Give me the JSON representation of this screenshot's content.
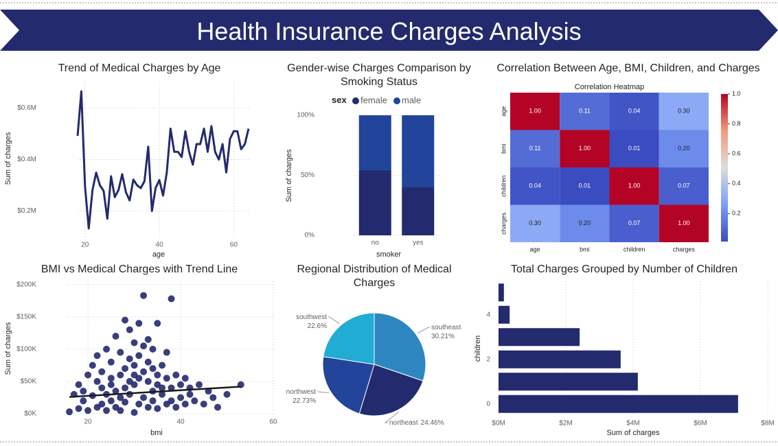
{
  "header": {
    "title": "Health Insurance Charges Analysis"
  },
  "chart_data": [
    {
      "type": "line",
      "title": "Trend of Medical Charges by Age",
      "xlabel": "age",
      "ylabel": "Sum of charges",
      "color": "#232a6e",
      "x": [
        18,
        19,
        20,
        21,
        22,
        23,
        24,
        25,
        26,
        27,
        28,
        29,
        30,
        31,
        32,
        33,
        34,
        35,
        36,
        37,
        38,
        39,
        40,
        41,
        42,
        43,
        44,
        45,
        46,
        47,
        48,
        49,
        50,
        51,
        52,
        53,
        54,
        55,
        56,
        57,
        58,
        59,
        60,
        61,
        62,
        63,
        64
      ],
      "values": [
        492000,
        665000,
        295000,
        132000,
        281000,
        349000,
        300000,
        278000,
        170000,
        335000,
        254000,
        281000,
        343000,
        273000,
        241000,
        322000,
        300000,
        289000,
        316000,
        450000,
        200000,
        290000,
        320000,
        260000,
        350000,
        520000,
        430000,
        430000,
        410000,
        510000,
        430000,
        380000,
        460000,
        460000,
        520000,
        430000,
        530000,
        430000,
        400000,
        460000,
        350000,
        480000,
        510000,
        510000,
        440000,
        460000,
        520000
      ],
      "xlim": [
        18,
        64
      ],
      "xticks": [
        20,
        40,
        60
      ],
      "ylim": [
        100000,
        700000
      ],
      "yticks": [
        {
          "value": 200000,
          "label": "$0.2M"
        },
        {
          "value": 400000,
          "label": "$0.4M"
        },
        {
          "value": 600000,
          "label": "$0.6M"
        }
      ],
      "grid": true
    },
    {
      "type": "bar",
      "title": "Gender-wise Charges Comparison by Smoking Status",
      "xlabel": "smoker",
      "ylabel": "Sum of charges",
      "legend_title": "sex",
      "stacked": true,
      "categories": [
        "no",
        "yes"
      ],
      "series": [
        {
          "name": "female",
          "color": "#232a6e",
          "values": [
            54,
            40
          ]
        },
        {
          "name": "male",
          "color": "#22449a",
          "values": [
            46,
            60
          ]
        }
      ],
      "ylim": [
        0,
        100
      ],
      "yticks": [
        {
          "value": 0,
          "label": "0%"
        },
        {
          "value": 50,
          "label": "50%"
        },
        {
          "value": 100,
          "label": "100%"
        }
      ],
      "grid": true
    },
    {
      "type": "heatmap",
      "title": "Correlation Between Age, BMI, Children, and Charges",
      "heatmap_title": "Correlation Heatmap",
      "categories": [
        "age",
        "bmi",
        "children",
        "charges"
      ],
      "values": [
        [
          1,
          0.11,
          0.04,
          0.3
        ],
        [
          0.11,
          1,
          0.01,
          0.2
        ],
        [
          0.04,
          0.01,
          1,
          0.07
        ],
        [
          0.3,
          0.2,
          0.07,
          1
        ]
      ],
      "value_labels": [
        [
          "1.00",
          "0.11",
          "0.04",
          "0.30"
        ],
        [
          "0.11",
          "1.00",
          "0.01",
          "0.20"
        ],
        [
          "0.04",
          "0.01",
          "1.00",
          "0.07"
        ],
        [
          "0.30",
          "0.20",
          "0.07",
          "1.00"
        ]
      ],
      "clim": [
        0.013,
        1
      ],
      "cticks": [
        0.2,
        0.4,
        0.6,
        0.8,
        {
          "value": 1,
          "label": "1.0"
        }
      ],
      "colormap": [
        "#3b4cc0",
        "#7b9ff9",
        "#dddddd",
        "#f49a7b",
        "#b40426"
      ]
    },
    {
      "type": "scatter",
      "title": "BMI vs Medical Charges with Trend Line",
      "xlabel": "bmi",
      "ylabel": "Sum of charges",
      "color": "#232a6e",
      "x": [
        16,
        17,
        18,
        18,
        19,
        19,
        20,
        20,
        21,
        21,
        22,
        22,
        22,
        23,
        23,
        23,
        24,
        24,
        24,
        25,
        25,
        25,
        25,
        26,
        26,
        26,
        27,
        27,
        27,
        27,
        28,
        28,
        28,
        28,
        29,
        29,
        29,
        29,
        30,
        30,
        30,
        30,
        30,
        31,
        31,
        31,
        31,
        32,
        32,
        32,
        32,
        33,
        33,
        33,
        33,
        34,
        34,
        34,
        34,
        35,
        35,
        35,
        35,
        36,
        36,
        36,
        37,
        37,
        37,
        38,
        38,
        38,
        39,
        39,
        40,
        40,
        41,
        41,
        42,
        42,
        43,
        44,
        45,
        46,
        47,
        48,
        50,
        53
      ],
      "y": [
        3000,
        30000,
        8000,
        45000,
        20000,
        35000,
        5000,
        60000,
        28000,
        75000,
        10000,
        50000,
        90000,
        15000,
        40000,
        65000,
        5000,
        30000,
        100000,
        20000,
        45000,
        80000,
        55000,
        10000,
        35000,
        120000,
        25000,
        60000,
        95000,
        5000,
        40000,
        70000,
        145000,
        18000,
        50000,
        85000,
        130000,
        30000,
        2000,
        45000,
        75000,
        110000,
        60000,
        15000,
        55000,
        90000,
        140000,
        25000,
        65000,
        105000,
        183000,
        10000,
        50000,
        80000,
        115000,
        35000,
        70000,
        100000,
        20000,
        45000,
        140000,
        60000,
        8000,
        40000,
        75000,
        30000,
        55000,
        95000,
        15000,
        40000,
        178000,
        20000,
        60000,
        10000,
        45000,
        25000,
        55000,
        15000,
        40000,
        30000,
        20000,
        45000,
        15000,
        35000,
        25000,
        10000,
        30000,
        45000
      ],
      "trend": {
        "x": [
          16,
          53
        ],
        "y": [
          26000,
          42000
        ],
        "color": "#1a1a1a"
      },
      "xlim": [
        15.4,
        60
      ],
      "xticks": [
        20,
        40,
        60
      ],
      "ylim": [
        0,
        205000
      ],
      "yticks": [
        {
          "value": 0,
          "label": "$0K"
        },
        {
          "value": 50000,
          "label": "$50K"
        },
        {
          "value": 100000,
          "label": "$100K"
        },
        {
          "value": 150000,
          "label": "$150K"
        },
        {
          "value": 200000,
          "label": "$200K"
        }
      ],
      "grid": true
    },
    {
      "type": "pie",
      "title": "Regional Distribution of Medical Charges",
      "categories": [
        "southeast",
        "northeast",
        "northwest",
        "southwest"
      ],
      "values": [
        30.21,
        24.46,
        22.73,
        22.6
      ],
      "value_labels": [
        "30.21%",
        "24.46%",
        "22.73%",
        "22.6%"
      ],
      "colors": [
        "#2e86c1",
        "#232a6e",
        "#22449a",
        "#21acd3"
      ]
    },
    {
      "type": "barh",
      "title": "Total Charges Grouped by Number of Children",
      "xlabel": "Sum of charges",
      "ylabel": "children",
      "color": "#232a6e",
      "categories": [
        "0",
        null,
        "2",
        null,
        "4",
        null
      ],
      "values": [
        7120000,
        4140000,
        3630000,
        2410000,
        330000,
        160000
      ],
      "xlim": [
        0,
        8000000
      ],
      "xticks": [
        {
          "value": 0,
          "label": "$0M"
        },
        {
          "value": 2000000,
          "label": "$2M"
        },
        {
          "value": 4000000,
          "label": "$4M"
        },
        {
          "value": 6000000,
          "label": "$6M"
        },
        {
          "value": 8000000,
          "label": "$8M"
        }
      ],
      "grid": true
    }
  ]
}
